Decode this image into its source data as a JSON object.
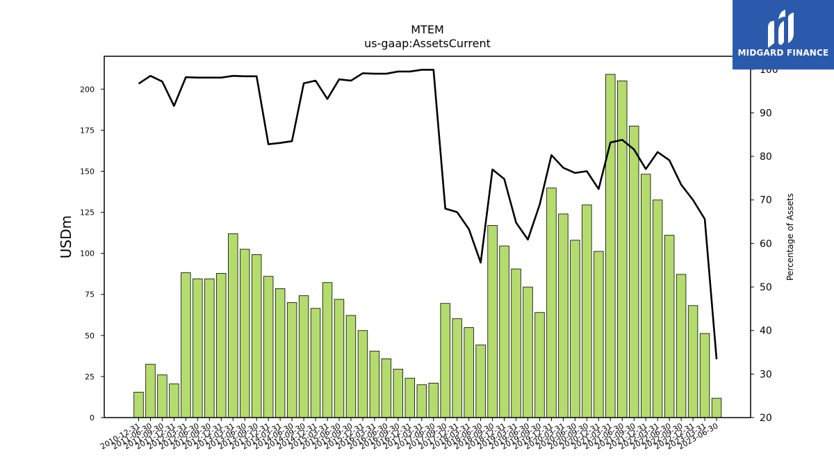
{
  "chart_data": {
    "type": "bar",
    "title": "MTEM",
    "subtitle": "us-gaap:AssetsCurrent",
    "ylabel": "USDm",
    "y2label": "Percentage of Assets",
    "ylim": [
      0,
      220
    ],
    "y2lim": [
      20,
      103
    ],
    "yticks": [
      0,
      25,
      50,
      75,
      100,
      125,
      150,
      175,
      200
    ],
    "y2ticks": [
      20,
      30,
      40,
      50,
      60,
      70,
      80,
      90,
      100
    ],
    "categories": [
      "2010-12-31",
      "2011-06-30",
      "2011-09-30",
      "2011-12-31",
      "2012-03-31",
      "2012-06-30",
      "2012-09-30",
      "2012-12-31",
      "2013-03-31",
      "2013-06-30",
      "2013-09-30",
      "2013-12-31",
      "2014-03-31",
      "2014-06-30",
      "2014-09-30",
      "2014-12-31",
      "2015-03-31",
      "2015-06-30",
      "2015-09-30",
      "2015-12-31",
      "2016-03-31",
      "2016-06-30",
      "2016-09-30",
      "2016-12-31",
      "2017-03-31",
      "2017-06-30",
      "2017-09-30",
      "2017-12-31",
      "2018-03-31",
      "2018-06-30",
      "2018-09-30",
      "2018-12-31",
      "2019-03-31",
      "2019-06-30",
      "2019-09-30",
      "2019-12-31",
      "2020-03-31",
      "2020-06-30",
      "2020-09-30",
      "2020-12-31",
      "2021-03-31",
      "2021-06-30",
      "2021-09-30",
      "2021-12-31",
      "2022-03-31",
      "2022-06-30",
      "2022-09-30",
      "2022-12-31",
      "2023-03-31",
      "2023-06-30"
    ],
    "series": [
      {
        "type": "bar",
        "axis": "left",
        "color": "#b3dc6c",
        "values": [
          15.5,
          32.5,
          26,
          20.5,
          88.2,
          84.5,
          84.5,
          87.8,
          112,
          102.5,
          99.2,
          86,
          78.5,
          70,
          74.2,
          66.5,
          82.2,
          72,
          62.2,
          53,
          40.5,
          35.8,
          29.5,
          24,
          20,
          21,
          69.5,
          60.2,
          54.8,
          44.2,
          117,
          104.5,
          90.5,
          79.5,
          64,
          139.8,
          124,
          108,
          129.5,
          101.2,
          209,
          205,
          177.5,
          148.2,
          132.5,
          111,
          87.2,
          68.2,
          51.2,
          11.8
        ]
      },
      {
        "type": "line",
        "axis": "right",
        "color": "#000000",
        "values": [
          96.7,
          98.5,
          97.2,
          91.6,
          98.2,
          98.1,
          98.1,
          98.1,
          98.5,
          98.4,
          98.4,
          82.8,
          83.1,
          83.5,
          96.8,
          97.4,
          93.2,
          97.7,
          97.4,
          99.1,
          99,
          99,
          99.5,
          99.5,
          99.9,
          99.9,
          68,
          67.2,
          63.3,
          55.6,
          77,
          74.8,
          64.8,
          60.9,
          68.9,
          80.3,
          77.4,
          76.2,
          76.6,
          72.5,
          83.2,
          83.8,
          81.6,
          77.1,
          81,
          79.1,
          73.5,
          70,
          65.6,
          33.4
        ]
      }
    ]
  },
  "logo": {
    "text": "MIDGARD FINANCE"
  }
}
